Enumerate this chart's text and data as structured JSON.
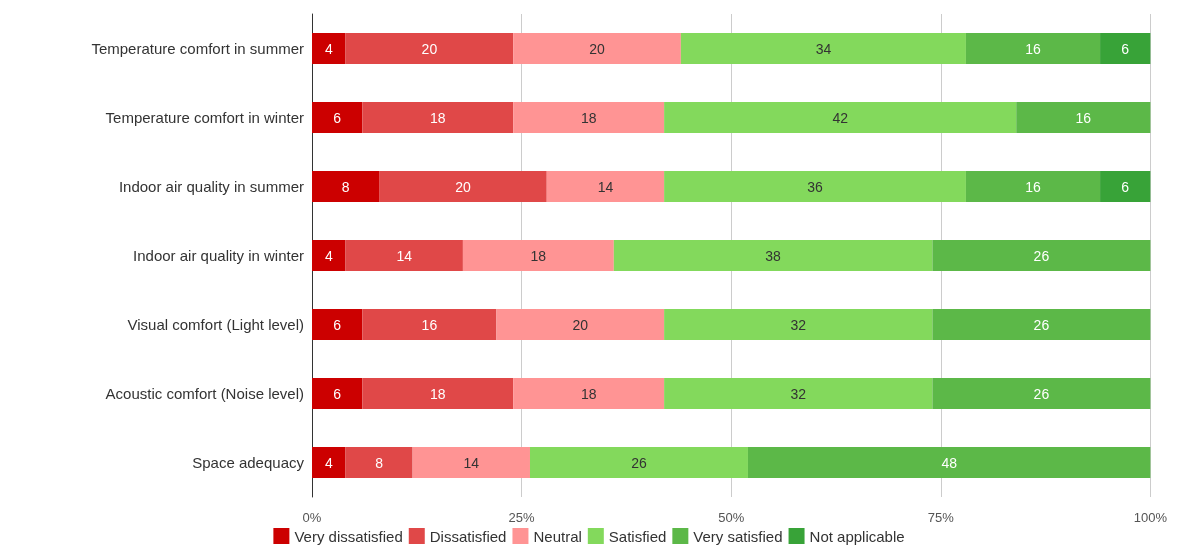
{
  "chart_data": {
    "type": "bar",
    "orientation": "horizontal",
    "stacked": true,
    "data_labels": true,
    "grid": "x",
    "legend": "bottom",
    "categories": [
      "Temperature comfort in summer",
      "Temperature comfort in winter",
      "Indoor air quality in summer",
      "Indoor air quality in winter",
      "Visual comfort (Light level)",
      "Acoustic comfort (Noise level)",
      "Space adequacy"
    ],
    "xlim": [
      0,
      100
    ],
    "xticks": [
      {
        "value": 0,
        "label": "0%"
      },
      {
        "value": 25,
        "label": "25%"
      },
      {
        "value": 50,
        "label": "50%"
      },
      {
        "value": 75,
        "label": "75%"
      },
      {
        "value": 100,
        "label": "100%"
      }
    ],
    "series": [
      {
        "name": "Very dissatisfied",
        "color": "#cc0000",
        "values": [
          4,
          6,
          8,
          4,
          6,
          6,
          4
        ]
      },
      {
        "name": "Dissatisfied",
        "color": "#e04848",
        "values": [
          20,
          18,
          20,
          14,
          16,
          18,
          8
        ]
      },
      {
        "name": "Neutral",
        "color": "#ff9494",
        "values": [
          20,
          18,
          14,
          18,
          20,
          18,
          14
        ]
      },
      {
        "name": "Satisfied",
        "color": "#83d95c",
        "values": [
          34,
          42,
          36,
          38,
          32,
          32,
          26
        ]
      },
      {
        "name": "Very satisfied",
        "color": "#5cb848",
        "values": [
          16,
          16,
          16,
          26,
          26,
          26,
          48
        ]
      },
      {
        "name": "Not applicable",
        "color": "#38a338",
        "values": [
          6,
          null,
          6,
          null,
          null,
          null,
          null
        ]
      }
    ]
  }
}
